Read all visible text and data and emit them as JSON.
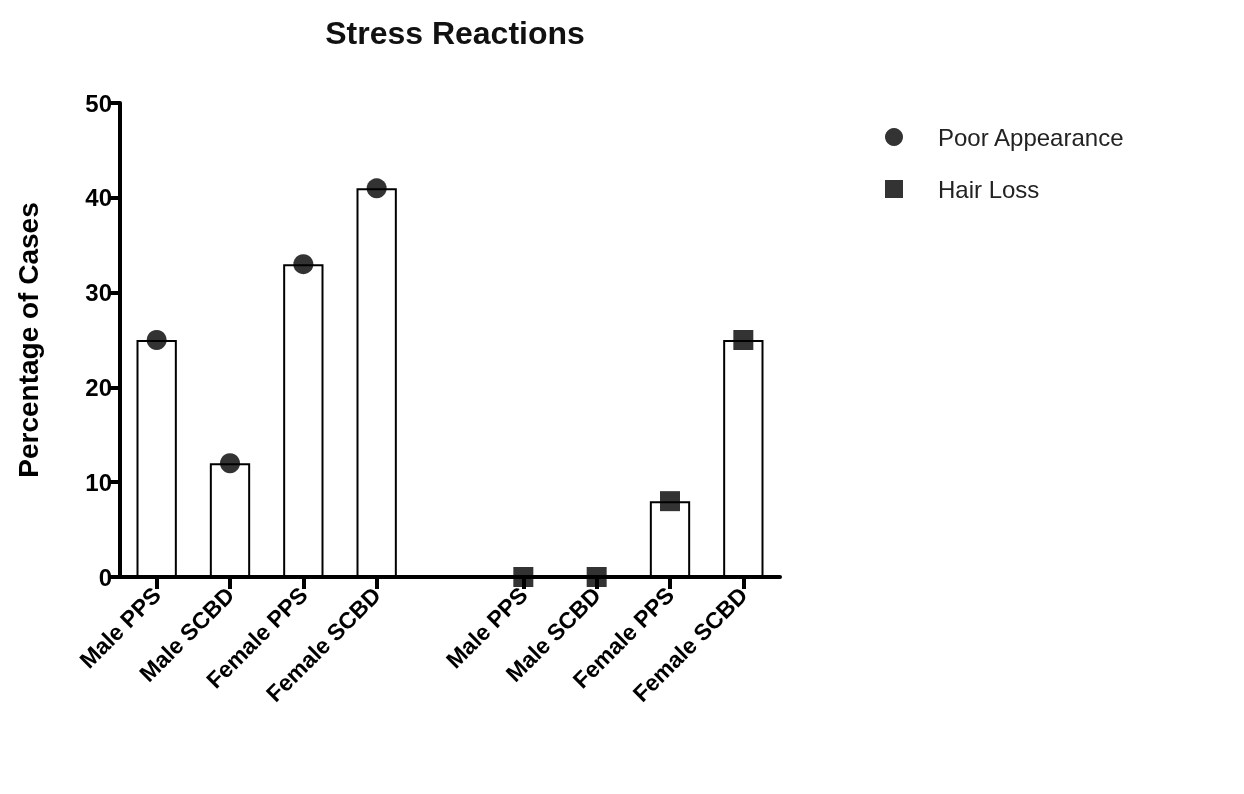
{
  "chart_data": {
    "type": "bar",
    "title": "Stress Reactions",
    "ylabel": "Percentage of Cases",
    "categories": [
      "Male PPS",
      "Male SCBD",
      "Female PPS",
      "Female SCBD",
      null,
      "Male PPS",
      "Male SCBD",
      "Female PPS",
      "Female SCBD"
    ],
    "series": [
      {
        "type": "bar",
        "color": "#ffffff",
        "values": [
          25,
          12,
          33,
          41,
          null,
          null,
          null,
          8,
          25
        ]
      },
      {
        "type": "scatter",
        "name": "Poor Appearance",
        "color": "#000000",
        "marker": "circle",
        "values": [
          25,
          12,
          33,
          41,
          null,
          null,
          null,
          null,
          null
        ]
      },
      {
        "type": "scatter",
        "name": "Hair Loss",
        "color": "#000000",
        "marker": "square",
        "values": [
          null,
          null,
          null,
          null,
          null,
          0,
          0,
          8,
          25
        ]
      }
    ],
    "ylim": [
      0,
      50
    ],
    "yticks": [
      0,
      10,
      20,
      30,
      40,
      50
    ],
    "grid": false,
    "legend": "top right"
  }
}
